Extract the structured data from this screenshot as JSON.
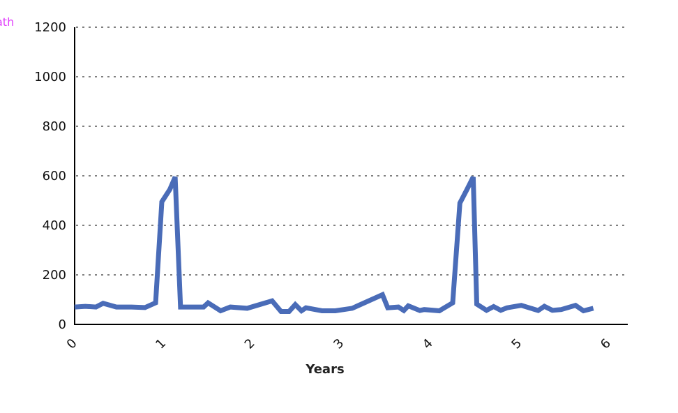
{
  "corner_label": "ath",
  "colors": {
    "line": "#4a6cb8",
    "grid": "#808080",
    "axis": "#000000",
    "corner_label": "#e040fb"
  },
  "chart_data": {
    "type": "line",
    "xlabel": "Years",
    "ylabel": "",
    "ylim": [
      0,
      1200
    ],
    "yticks": [
      0,
      200,
      400,
      600,
      800,
      1000,
      1200
    ],
    "xlim": [
      0,
      6.1
    ],
    "xticks": [
      0,
      1,
      2,
      3,
      4,
      5,
      6
    ],
    "grid": "horizontal dotted",
    "series": [
      {
        "values": [
          [
            0.0,
            70
          ],
          [
            0.12,
            73
          ],
          [
            0.24,
            70
          ],
          [
            0.32,
            85
          ],
          [
            0.47,
            70
          ],
          [
            0.64,
            70
          ],
          [
            0.79,
            68
          ],
          [
            0.91,
            87
          ],
          [
            0.98,
            495
          ],
          [
            1.07,
            545
          ],
          [
            1.13,
            595
          ],
          [
            1.19,
            70
          ],
          [
            1.45,
            70
          ],
          [
            1.5,
            87
          ],
          [
            1.64,
            55
          ],
          [
            1.75,
            70
          ],
          [
            1.94,
            65
          ],
          [
            2.22,
            95
          ],
          [
            2.32,
            52
          ],
          [
            2.41,
            52
          ],
          [
            2.48,
            80
          ],
          [
            2.55,
            55
          ],
          [
            2.6,
            67
          ],
          [
            2.78,
            55
          ],
          [
            2.93,
            55
          ],
          [
            3.12,
            65
          ],
          [
            3.46,
            120
          ],
          [
            3.52,
            67
          ],
          [
            3.64,
            70
          ],
          [
            3.7,
            56
          ],
          [
            3.75,
            75
          ],
          [
            3.88,
            56
          ],
          [
            3.93,
            60
          ],
          [
            4.1,
            55
          ],
          [
            4.25,
            87
          ],
          [
            4.33,
            490
          ],
          [
            4.41,
            545
          ],
          [
            4.48,
            595
          ],
          [
            4.52,
            82
          ],
          [
            4.63,
            57
          ],
          [
            4.71,
            72
          ],
          [
            4.79,
            57
          ],
          [
            4.86,
            67
          ],
          [
            5.02,
            77
          ],
          [
            5.21,
            56
          ],
          [
            5.28,
            73
          ],
          [
            5.37,
            57
          ],
          [
            5.47,
            60
          ],
          [
            5.63,
            77
          ],
          [
            5.72,
            55
          ],
          [
            5.83,
            65
          ]
        ]
      }
    ]
  }
}
